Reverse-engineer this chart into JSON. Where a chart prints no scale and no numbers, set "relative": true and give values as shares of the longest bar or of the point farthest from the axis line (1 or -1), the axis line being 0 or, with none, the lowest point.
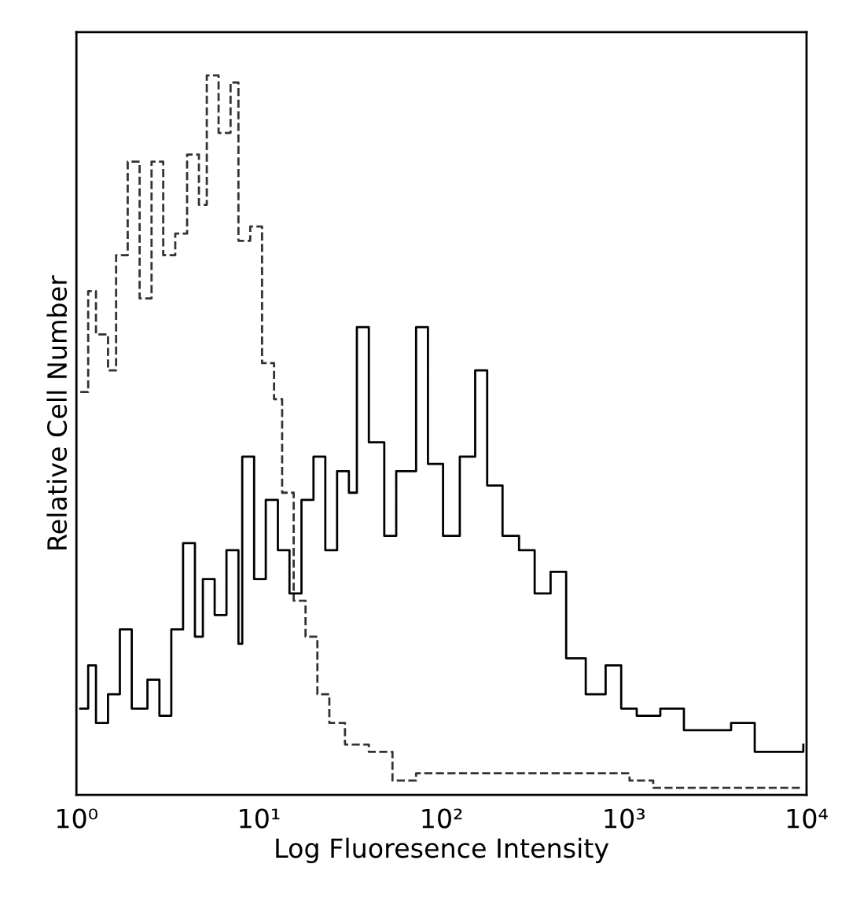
{
  "chart_data": {
    "type": "step",
    "xlabel": "Log Fluoresence Intensity",
    "ylabel": "Relative Cell Number",
    "relative": true,
    "log": "x",
    "xlim": [
      1,
      10000
    ],
    "xticks": [
      {
        "value": 1,
        "label": "10⁰"
      },
      {
        "value": 10,
        "label": "10¹"
      },
      {
        "value": 100,
        "label": "10²"
      },
      {
        "value": 1000,
        "label": "10³"
      },
      {
        "value": 10000,
        "label": "10⁴"
      }
    ],
    "grid": false,
    "legend": false,
    "series": [
      {
        "color": "#333333",
        "line_style": "dashed",
        "x": [
          1.05,
          1.16,
          1.28,
          1.49,
          1.65,
          1.91,
          2.22,
          2.58,
          2.99,
          3.48,
          4.04,
          4.69,
          5.18,
          6.01,
          6.99,
          7.72,
          8.96,
          10.4,
          12.1,
          13.4,
          15.5,
          18.0,
          20.9,
          24.3,
          29.6,
          40.0,
          53.9,
          72.6,
          98,
          146,
          266,
          396,
          720,
          1072,
          1445,
          2904,
          9600
        ],
        "values": [
          0.56,
          0.7,
          0.64,
          0.59,
          0.75,
          0.88,
          0.69,
          0.88,
          0.75,
          0.78,
          0.89,
          0.82,
          1.0,
          0.92,
          0.99,
          0.77,
          0.79,
          0.6,
          0.55,
          0.42,
          0.27,
          0.22,
          0.14,
          0.1,
          0.07,
          0.06,
          0.02,
          0.03,
          0.03,
          0.03,
          0.03,
          0.03,
          0.03,
          0.02,
          0.01,
          0.01,
          0.01
        ]
      },
      {
        "color": "#000000",
        "line_style": "solid",
        "x": [
          1.05,
          1.16,
          1.28,
          1.49,
          1.73,
          2.01,
          2.45,
          2.85,
          3.31,
          3.84,
          4.46,
          4.93,
          5.72,
          6.64,
          7.72,
          8.1,
          9.41,
          10.9,
          12.7,
          14.7,
          17.1,
          19.9,
          23.1,
          26.8,
          31.1,
          34.4,
          40.0,
          48.6,
          56.5,
          72.6,
          84.3,
          102,
          126,
          153,
          178,
          216,
          266,
          324,
          396,
          482,
          617,
          793,
          965,
          1174,
          1581,
          2129,
          2869,
          3860,
          5200,
          7000,
          9600
        ],
        "values": [
          0.12,
          0.18,
          0.1,
          0.14,
          0.23,
          0.12,
          0.16,
          0.11,
          0.23,
          0.35,
          0.22,
          0.3,
          0.25,
          0.34,
          0.21,
          0.47,
          0.3,
          0.41,
          0.34,
          0.28,
          0.41,
          0.47,
          0.34,
          0.45,
          0.42,
          0.65,
          0.49,
          0.36,
          0.45,
          0.65,
          0.46,
          0.36,
          0.47,
          0.59,
          0.43,
          0.36,
          0.34,
          0.28,
          0.31,
          0.19,
          0.14,
          0.18,
          0.12,
          0.11,
          0.12,
          0.09,
          0.09,
          0.1,
          0.06,
          0.06,
          0.07
        ]
      }
    ]
  }
}
